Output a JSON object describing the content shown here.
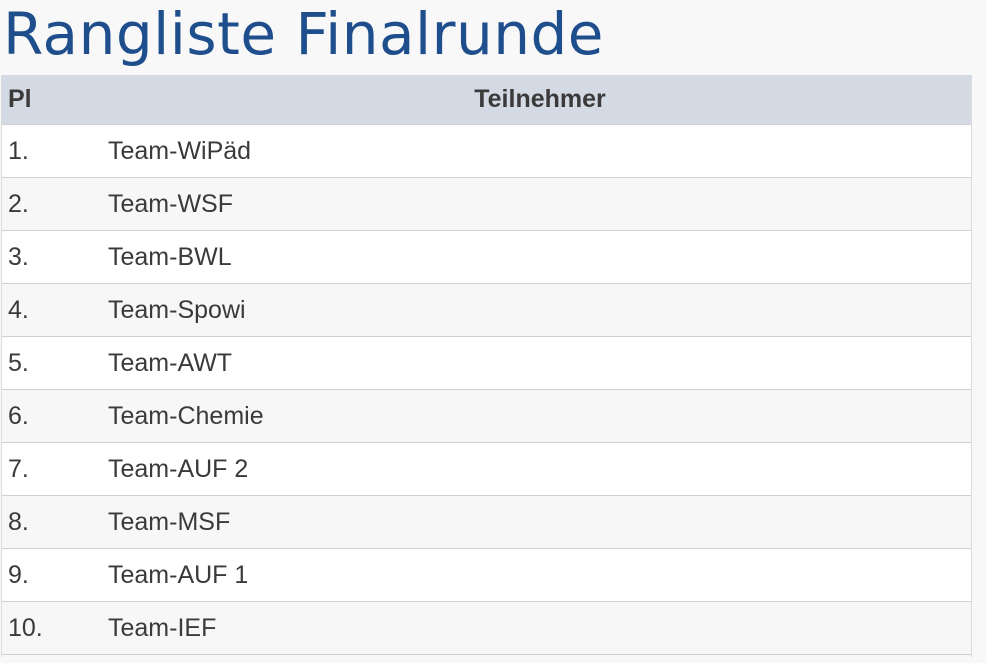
{
  "title": "Rangliste Finalrunde",
  "table": {
    "headers": {
      "place": "Pl",
      "participant": "Teilnehmer"
    },
    "rows": [
      {
        "place": "1.",
        "team": "Team-WiPäd"
      },
      {
        "place": "2.",
        "team": "Team-WSF"
      },
      {
        "place": "3.",
        "team": "Team-BWL"
      },
      {
        "place": "4.",
        "team": "Team-Spowi"
      },
      {
        "place": "5.",
        "team": "Team-AWT"
      },
      {
        "place": "6.",
        "team": "Team-Chemie"
      },
      {
        "place": "7.",
        "team": "Team-AUF 2"
      },
      {
        "place": "8.",
        "team": "Team-MSF"
      },
      {
        "place": "9.",
        "team": "Team-AUF 1"
      },
      {
        "place": "10.",
        "team": "Team-IEF"
      }
    ]
  },
  "colors": {
    "title": "#1f4e8c",
    "header_background": "#d4dae3",
    "text": "#3a3a3a"
  }
}
